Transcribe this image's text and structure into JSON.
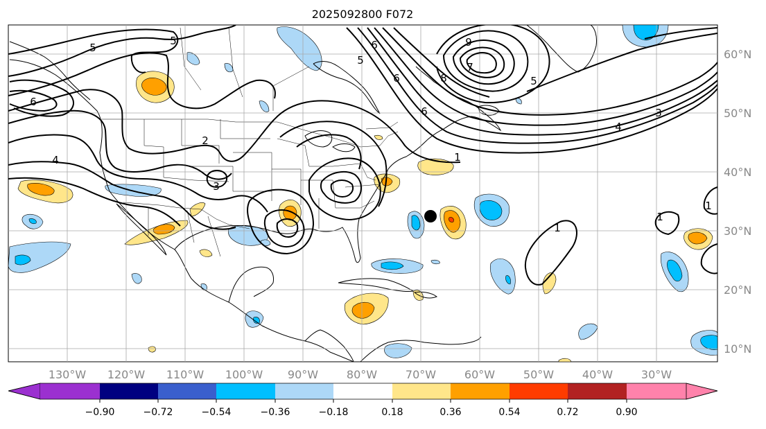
{
  "title": "2025092800 F072",
  "lon_labels": [
    "130°W",
    "120°W",
    "110°W",
    "100°W",
    "90°W",
    "80°W",
    "70°W",
    "60°W",
    "50°W",
    "40°W",
    "30°W"
  ],
  "lat_labels": [
    "60°N",
    "50°N",
    "40°N",
    "30°N",
    "20°N",
    "10°N"
  ],
  "colorbar": {
    "tick_labels": [
      "−0.90",
      "−0.72",
      "−0.54",
      "−0.36",
      "−0.18",
      "0.18",
      "0.36",
      "0.54",
      "0.72",
      "0.90"
    ],
    "colors": [
      "#9b30d0",
      "#000080",
      "#3a5fcd",
      "#00bfff",
      "#add8f7",
      "#ffffff",
      "#ffe68a",
      "#ffa000",
      "#ff3c00",
      "#b22222",
      "#ff82ab"
    ]
  },
  "contour_labels": [
    "5",
    "6",
    "4",
    "5",
    "2",
    "3",
    "6",
    "5",
    "9",
    "6",
    "8",
    "7",
    "6",
    "5",
    "4",
    "3",
    "1",
    "1",
    "1",
    "1"
  ],
  "colors": {
    "warm_light": "#ffe68a",
    "warm_mid": "#ffa000",
    "warm_strong": "#ff3c00",
    "cool_light": "#add8f7",
    "cool_mid": "#00bfff",
    "grid": "#a8a8a8",
    "label_gray": "#888888"
  }
}
